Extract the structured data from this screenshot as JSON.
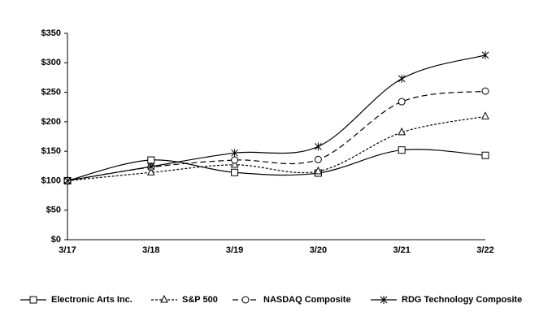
{
  "chart_data": {
    "type": "line",
    "categories": [
      "3/17",
      "3/18",
      "3/19",
      "3/20",
      "3/21",
      "3/22"
    ],
    "series": [
      {
        "name": "Electronic Arts Inc.",
        "color": "#000000",
        "marker": "square",
        "dash": "solid",
        "values": [
          100,
          135,
          114,
          113,
          152,
          143
        ]
      },
      {
        "name": "S&P 500",
        "color": "#000000",
        "marker": "triangle",
        "dash": "dotted",
        "values": [
          100,
          114,
          127,
          116,
          182,
          209
        ]
      },
      {
        "name": "NASDAQ Composite",
        "color": "#000000",
        "marker": "circle",
        "dash": "dashed",
        "values": [
          100,
          123,
          135,
          136,
          234,
          252
        ]
      },
      {
        "name": "RDG Technology Composite",
        "color": "#000000",
        "marker": "asterisk",
        "dash": "solid",
        "values": [
          100,
          124,
          147,
          158,
          273,
          313
        ]
      }
    ],
    "ylim": [
      0,
      350
    ],
    "yticks": [
      {
        "value": 0,
        "label": "$0"
      },
      {
        "value": 50,
        "label": "$50"
      },
      {
        "value": 100,
        "label": "$100"
      },
      {
        "value": 150,
        "label": "$150"
      },
      {
        "value": 200,
        "label": "$200"
      },
      {
        "value": 250,
        "label": "$250"
      },
      {
        "value": 300,
        "label": "$300"
      },
      {
        "value": 350,
        "label": "$350"
      }
    ],
    "legend": "bottom"
  }
}
